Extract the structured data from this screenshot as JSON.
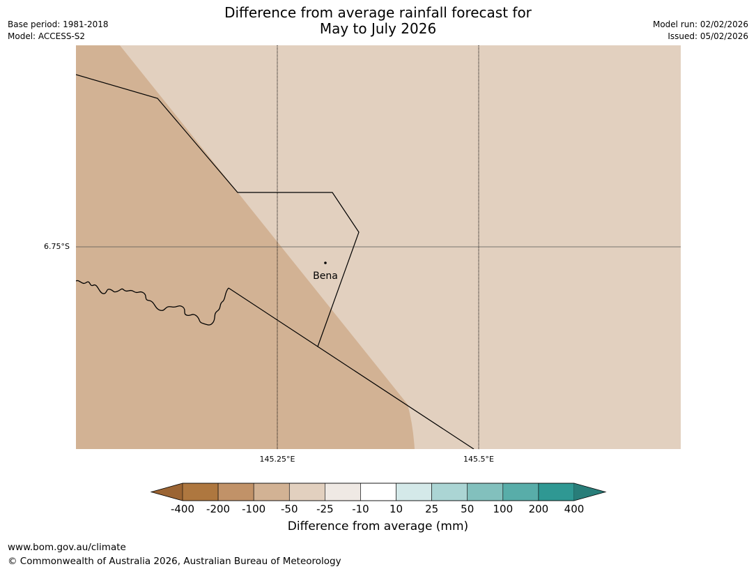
{
  "header": {
    "title_line1": "Difference from average rainfall forecast for",
    "title_line2": "May to July 2026",
    "base_period": "Base period: 1981-2018",
    "model": "Model: ACCESS-S2",
    "model_run": "Model run: 02/02/2026",
    "issued": "Issued: 05/02/2026"
  },
  "map": {
    "latitude_labels": [
      "6.75°S"
    ],
    "longitude_labels": [
      "145.25°E",
      "145.5°E"
    ],
    "places": [
      {
        "name": "Bena"
      }
    ],
    "regions": [
      {
        "category": "-100 to -50",
        "color": "#d2b294"
      },
      {
        "category": "-50 to -25",
        "color": "#e2d0bf"
      }
    ]
  },
  "legend": {
    "title": "Difference from average (mm)",
    "ticks": [
      "-400",
      "-200",
      "-100",
      "-50",
      "-25",
      "-10",
      "10",
      "25",
      "50",
      "100",
      "200",
      "400"
    ],
    "colors": {
      "extend_low": "#9b6433",
      "bins": [
        "#ae773f",
        "#c19268",
        "#d2b294",
        "#e2d0bf",
        "#efe9e4",
        "#ffffff",
        "#d4e9e9",
        "#abd5d4",
        "#82c0bd",
        "#58ada9",
        "#2f9893"
      ],
      "extend_high": "#287d79"
    }
  },
  "footer": {
    "url": "www.bom.gov.au/climate",
    "copyright": "© Commonwealth of Australia 2026, Australian Bureau of Meteorology"
  }
}
